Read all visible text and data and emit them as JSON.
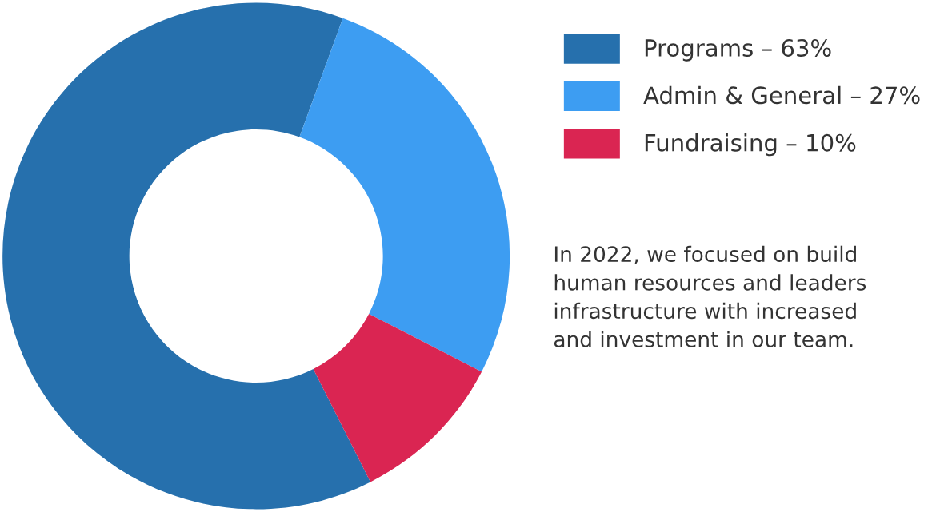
{
  "chart_data": {
    "type": "donut",
    "categories": [
      "Programs – 63%",
      "Admin & General – 27%",
      "Fundraising – 10%"
    ],
    "values": [
      63,
      27,
      10
    ],
    "colors": [
      "#2670ad",
      "#3d9df2",
      "#da2552"
    ],
    "legend": "top right",
    "annotations": [
      "In 2022, we focused on build\nhuman resources and leaders\ninfrastructure with increased\nand investment in our team."
    ]
  }
}
